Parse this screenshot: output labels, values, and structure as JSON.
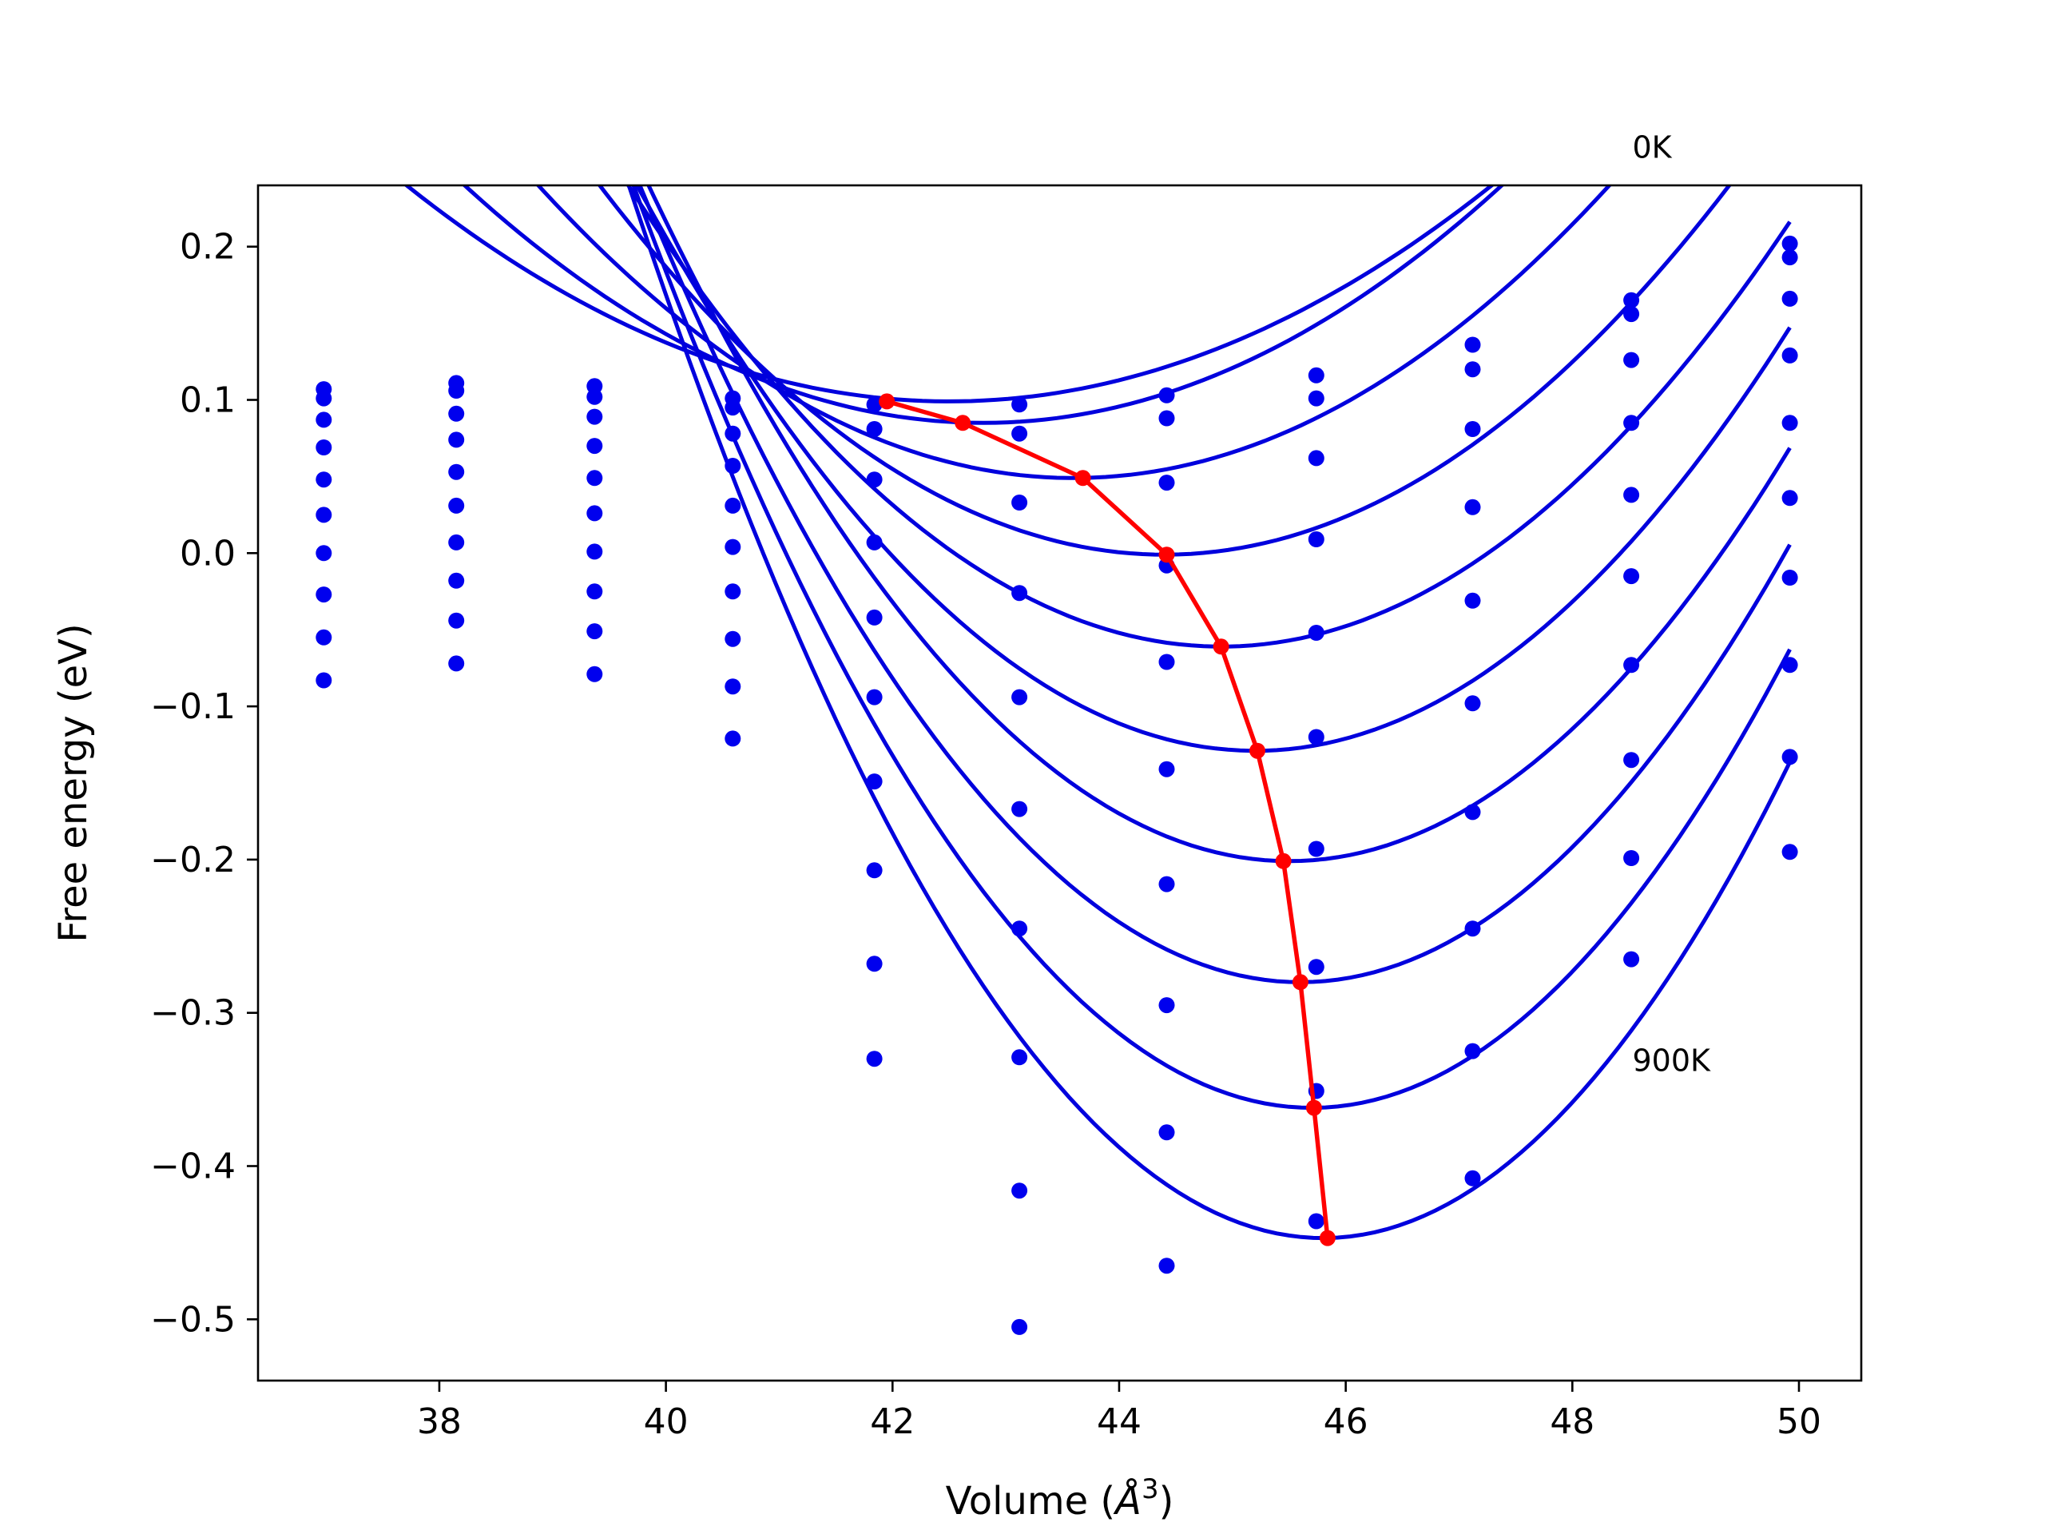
{
  "chart_data": {
    "type": "scatter",
    "title": "",
    "xlabel": "Volume (",
    "xlabel_unit": "Å",
    "xlabel_exp": "3",
    "xlabel_close": ")",
    "ylabel": "Free energy (eV)",
    "xlim": [
      36.4,
      50.55
    ],
    "ylim": [
      -0.54,
      0.24
    ],
    "xticks": [
      {
        "value": 38,
        "label": "38"
      },
      {
        "value": 40,
        "label": "40"
      },
      {
        "value": 42,
        "label": "42"
      },
      {
        "value": 44,
        "label": "44"
      },
      {
        "value": 46,
        "label": "46"
      },
      {
        "value": 48,
        "label": "48"
      },
      {
        "value": 50,
        "label": "50"
      }
    ],
    "yticks": [
      {
        "value": 0.2,
        "label": "0.2"
      },
      {
        "value": 0.1,
        "label": "0.1"
      },
      {
        "value": 0.0,
        "label": "0.0"
      },
      {
        "value": -0.1,
        "label": "−0.1"
      },
      {
        "value": -0.2,
        "label": "−0.2"
      },
      {
        "value": -0.3,
        "label": "−0.3"
      },
      {
        "value": -0.4,
        "label": "−0.4"
      },
      {
        "value": -0.5,
        "label": "−0.5"
      }
    ],
    "grid": false,
    "legend": "none",
    "colors": {
      "data": "#0000ee",
      "fit": "#0000dd",
      "minima": "#ff0000"
    },
    "annotations": [
      {
        "text": "0K",
        "x": 48.53,
        "y": 0.258
      },
      {
        "text": "900K",
        "x": 48.53,
        "y": -0.338
      }
    ],
    "volumes": [
      36.98,
      38.15,
      39.37,
      40.59,
      41.84,
      43.12,
      44.42,
      45.74,
      47.12,
      48.52,
      49.92
    ],
    "series": [
      {
        "values": [
          0.107,
          0.111,
          0.109,
          0.101,
          0.097,
          0.097,
          0.103,
          0.116,
          0.136,
          0.165,
          0.202
        ]
      },
      {
        "values": [
          0.101,
          0.106,
          0.102,
          0.095,
          0.081,
          0.078,
          0.088,
          0.101,
          0.12,
          0.156,
          0.193
        ]
      },
      {
        "values": [
          0.087,
          0.091,
          0.089,
          0.078,
          0.048,
          0.033,
          0.046,
          0.062,
          0.081,
          0.126,
          0.166
        ]
      },
      {
        "values": [
          0.069,
          0.074,
          0.07,
          0.057,
          0.007,
          -0.026,
          -0.008,
          0.009,
          0.03,
          0.085,
          0.129
        ]
      },
      {
        "values": [
          0.048,
          0.053,
          0.049,
          0.031,
          -0.042,
          -0.094,
          -0.071,
          -0.052,
          -0.031,
          0.038,
          0.085
        ]
      },
      {
        "values": [
          0.025,
          0.031,
          0.026,
          0.004,
          -0.094,
          -0.167,
          -0.141,
          -0.12,
          -0.098,
          -0.015,
          0.036
        ]
      },
      {
        "values": [
          0.0,
          0.007,
          0.001,
          -0.025,
          -0.149,
          -0.245,
          -0.216,
          -0.193,
          -0.169,
          -0.073,
          -0.016
        ]
      },
      {
        "values": [
          -0.027,
          -0.018,
          -0.025,
          -0.056,
          -0.207,
          -0.329,
          -0.295,
          -0.27,
          -0.245,
          -0.135,
          -0.073
        ]
      },
      {
        "values": [
          -0.055,
          -0.044,
          -0.051,
          -0.087,
          -0.268,
          -0.416,
          -0.378,
          -0.351,
          -0.325,
          -0.199,
          -0.133
        ]
      },
      {
        "values": [
          -0.083,
          -0.072,
          -0.079,
          -0.121,
          -0.33,
          -0.505,
          -0.465,
          -0.436,
          -0.408,
          -0.265,
          -0.195
        ]
      }
    ],
    "fits": [
      {
        "v0": 42.5,
        "e0": 0.099,
        "k": 0.00615
      },
      {
        "v0": 42.8,
        "e0": 0.085,
        "k": 0.0074
      },
      {
        "v0": 43.6,
        "e0": 0.049,
        "k": 0.00855
      },
      {
        "v0": 44.4,
        "e0": -0.001,
        "k": 0.0097
      },
      {
        "v0": 44.9,
        "e0": -0.061,
        "k": 0.011
      },
      {
        "v0": 45.2,
        "e0": -0.129,
        "k": 0.0124
      },
      {
        "v0": 45.5,
        "e0": -0.201,
        "k": 0.0138
      },
      {
        "v0": 45.6,
        "e0": -0.28,
        "k": 0.0153
      },
      {
        "v0": 45.7,
        "e0": -0.362,
        "k": 0.0168
      },
      {
        "v0": 45.8,
        "e0": -0.447,
        "k": 0.0183
      }
    ],
    "fit_range": [
      36.98,
      49.92
    ],
    "minima": {
      "x": [
        41.95,
        42.62,
        43.68,
        44.42,
        44.9,
        45.22,
        45.45,
        45.6,
        45.72,
        45.84
      ],
      "y": [
        0.099,
        0.085,
        0.049,
        -0.001,
        -0.061,
        -0.129,
        -0.201,
        -0.28,
        -0.362,
        -0.447
      ]
    }
  }
}
